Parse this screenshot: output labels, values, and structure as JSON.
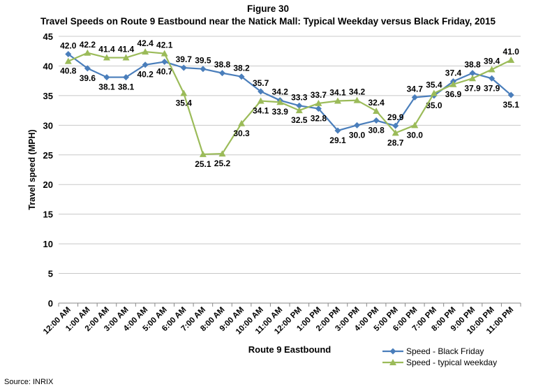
{
  "chart_data": {
    "type": "line",
    "figure_label": "Figure 30",
    "title": "Travel Speeds on Route 9 Eastbound near the Natick Mall: Typical Weekday versus Black Friday, 2015",
    "xlabel": "Route 9 Eastbound",
    "ylabel": "Travel speed (MPH)",
    "ylim": [
      0,
      45
    ],
    "yticks": [
      0,
      5,
      10,
      15,
      20,
      25,
      30,
      35,
      40,
      45
    ],
    "grid": true,
    "legend": "bottom-right",
    "categories": [
      "12:00 AM",
      "1:00 AM",
      "2:00 AM",
      "3:00 AM",
      "4:00 AM",
      "5:00 AM",
      "6:00 AM",
      "7:00 AM",
      "8:00 AM",
      "9:00 AM",
      "10:00 AM",
      "11:00 AM",
      "12:00 PM",
      "1:00 PM",
      "2:00 PM",
      "3:00 PM",
      "4:00 PM",
      "5:00 PM",
      "6:00 PM",
      "7:00 PM",
      "8:00 PM",
      "9:00 PM",
      "10:00 PM",
      "11:00 PM"
    ],
    "series": [
      {
        "name": "Speed - Black Friday",
        "color": "#4A7EBB",
        "marker": "diamond",
        "values": [
          42.0,
          39.6,
          38.1,
          38.1,
          40.2,
          40.7,
          39.7,
          39.5,
          38.8,
          38.2,
          35.7,
          34.2,
          33.3,
          32.8,
          29.1,
          30.0,
          30.8,
          29.9,
          34.7,
          35.0,
          37.4,
          38.8,
          37.9,
          35.1
        ]
      },
      {
        "name": "Speed - typical weekday",
        "color": "#9BBB59",
        "marker": "triangle",
        "values": [
          40.8,
          42.2,
          41.4,
          41.4,
          42.4,
          42.1,
          35.4,
          25.1,
          25.2,
          30.3,
          34.1,
          33.9,
          32.5,
          33.7,
          34.1,
          34.2,
          32.4,
          28.7,
          30.0,
          35.4,
          36.9,
          37.9,
          39.4,
          41.0
        ]
      }
    ]
  },
  "source": "Source: INRIX"
}
